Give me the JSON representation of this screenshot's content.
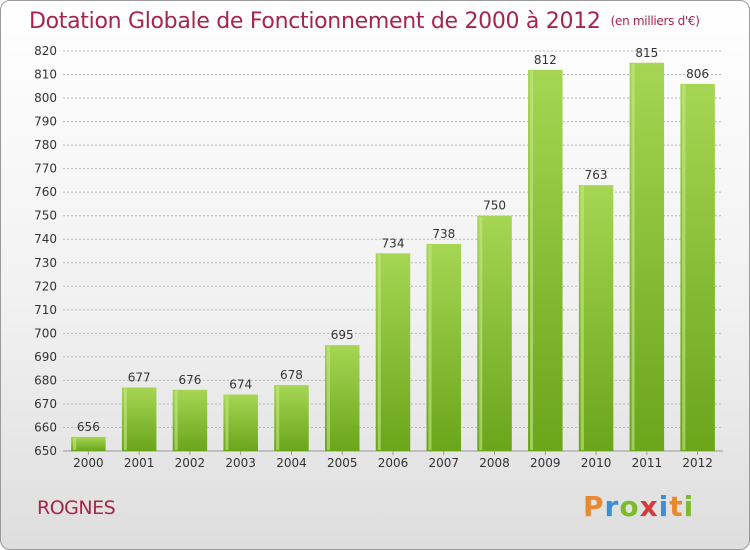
{
  "header": {
    "title": "Dotation Globale de Fonctionnement de 2000 à 2012",
    "unit": "(en milliers d'€)"
  },
  "footer": {
    "commune": "ROGNES",
    "logo_letters": [
      "P",
      "r",
      "o",
      "x",
      "i",
      "t",
      "i"
    ],
    "logo_colors": [
      "#e8892d",
      "#3a8fd6",
      "#7dbb2a",
      "#d63b3b",
      "#3a8fd6",
      "#e8892d",
      "#7dbb2a"
    ]
  },
  "chart_data": {
    "type": "bar",
    "categories": [
      "2000",
      "2001",
      "2002",
      "2003",
      "2004",
      "2005",
      "2006",
      "2007",
      "2008",
      "2009",
      "2010",
      "2011",
      "2012"
    ],
    "values": [
      656,
      677,
      676,
      674,
      678,
      695,
      734,
      738,
      750,
      812,
      763,
      815,
      806
    ],
    "data_labels": [
      "656",
      "677",
      "676",
      "674",
      "678",
      "695",
      "734",
      "738",
      "750",
      "812",
      "763",
      "815",
      "806"
    ],
    "yticks": [
      "650",
      "660",
      "670",
      "680",
      "690",
      "700",
      "710",
      "720",
      "730",
      "740",
      "750",
      "760",
      "770",
      "780",
      "790",
      "800",
      "810",
      "820"
    ],
    "ylim": [
      650,
      820
    ],
    "ystep": 10,
    "grid": true,
    "bar_color_light": "#a6d654",
    "bar_color_dark": "#6aa51a",
    "grid_color": "#b8b8b8",
    "axis_text_color": "#333333"
  }
}
